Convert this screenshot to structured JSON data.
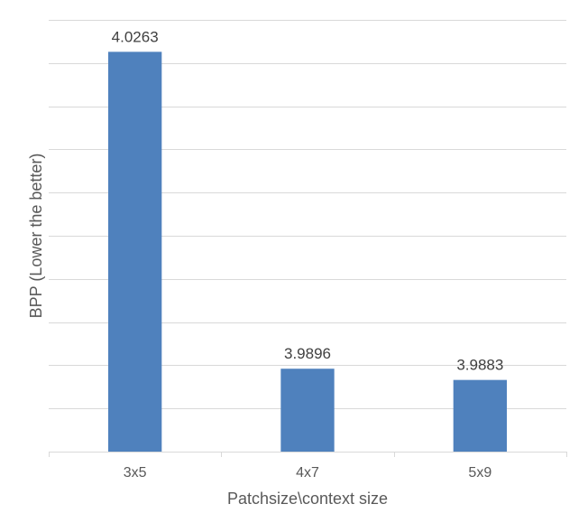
{
  "chart_data": {
    "type": "bar",
    "categories": [
      "3x5",
      "4x7",
      "5x9"
    ],
    "values": [
      4.0263,
      3.9896,
      3.9883
    ],
    "data_labels": [
      "4.0263",
      "3.9896",
      "3.9883"
    ],
    "xlabel": "Patchsize\\context size",
    "ylabel": "BPP (Lower the better)",
    "ylim": [
      3.98,
      4.03
    ],
    "y_gridline_step": 0.005,
    "y_tick_labels_shown": false,
    "grid": true,
    "legend": "none",
    "colors": {
      "bar": "#4f81bd",
      "grid": "#d9d9d9",
      "text": "#595959"
    }
  }
}
